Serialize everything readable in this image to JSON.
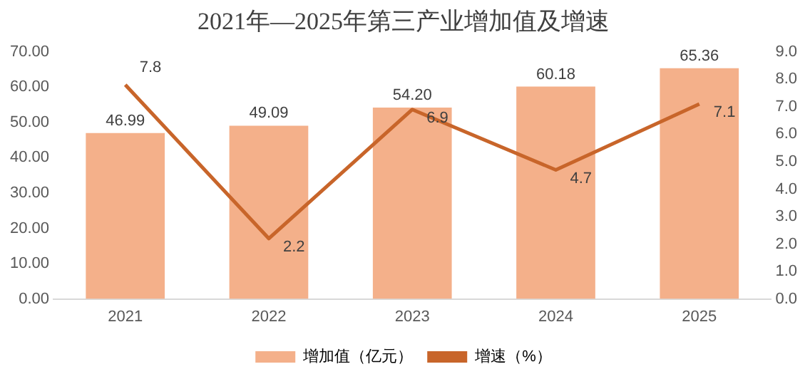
{
  "chart_data": {
    "type": "bar",
    "title": "2021年—2025年第三产业增加值及增速",
    "categories": [
      "2021",
      "2022",
      "2023",
      "2024",
      "2025"
    ],
    "series": [
      {
        "name": "增加值（亿元）",
        "color": "#f4b08a",
        "values": [
          46.99,
          49.09,
          54.2,
          60.18,
          65.36
        ],
        "value_labels": [
          "46.99",
          "49.09",
          "54.20",
          "60.18",
          "65.36"
        ]
      },
      {
        "name": "增速（%）",
        "type": "line",
        "axis": "y2",
        "color": "#c8652a",
        "values": [
          7.8,
          2.2,
          6.9,
          4.7,
          7.1
        ],
        "value_labels": [
          "7.8",
          "2.2",
          "6.9",
          "4.7",
          "7.1"
        ]
      }
    ],
    "ylim": [
      0,
      70
    ],
    "yticks": [
      {
        "value": 0,
        "label": "0.00"
      },
      {
        "value": 10,
        "label": "10.00"
      },
      {
        "value": 20,
        "label": "20.00"
      },
      {
        "value": 30,
        "label": "30.00"
      },
      {
        "value": 40,
        "label": "40.00"
      },
      {
        "value": 50,
        "label": "50.00"
      },
      {
        "value": 60,
        "label": "60.00"
      },
      {
        "value": 70,
        "label": "70.00"
      }
    ],
    "y2lim": [
      0,
      9
    ],
    "y2ticks": [
      {
        "value": 0,
        "label": "0.0"
      },
      {
        "value": 1,
        "label": "1.0"
      },
      {
        "value": 2,
        "label": "2.0"
      },
      {
        "value": 3,
        "label": "3.0"
      },
      {
        "value": 4,
        "label": "4.0"
      },
      {
        "value": 5,
        "label": "5.0"
      },
      {
        "value": 6,
        "label": "6.0"
      },
      {
        "value": 7,
        "label": "7.0"
      },
      {
        "value": 8,
        "label": "8.0"
      },
      {
        "value": 9,
        "label": "9.0"
      }
    ],
    "grid": false,
    "legend": "bottom",
    "marker": "none",
    "line_style": "solid"
  }
}
